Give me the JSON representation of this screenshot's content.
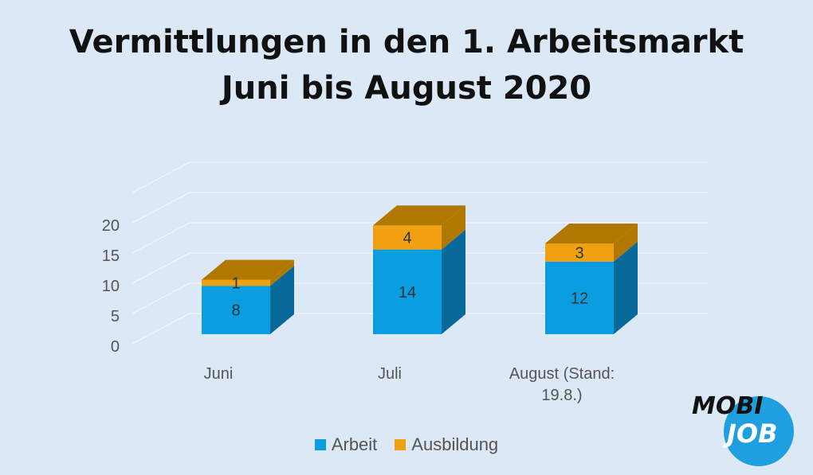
{
  "title_line1": "Vermittlungen in den 1. Arbeitsmarkt",
  "title_line2": "Juni bis August 2020",
  "colors": {
    "arbeit": "#0a9de0",
    "arbeit_side": "#076a9a",
    "ausbildung": "#f0a010",
    "ausbildung_top": "#b07800",
    "grid": "#f2f5f9"
  },
  "chart_data": {
    "type": "bar",
    "stacked": true,
    "three_d": true,
    "categories": [
      [
        "Juni"
      ],
      [
        "Juli"
      ],
      [
        "August (Stand:",
        "19.8.)"
      ]
    ],
    "series": [
      {
        "name": "Arbeit",
        "values": [
          8,
          14,
          12
        ]
      },
      {
        "name": "Ausbildung",
        "values": [
          1,
          4,
          3
        ]
      }
    ],
    "y_ticks": [
      "0",
      "5",
      "10",
      "15",
      "20"
    ],
    "ylim": [
      0,
      25
    ],
    "grid": true,
    "legend": "bottom"
  },
  "logo": {
    "line1": "MOBI",
    "line2": "JOB"
  }
}
